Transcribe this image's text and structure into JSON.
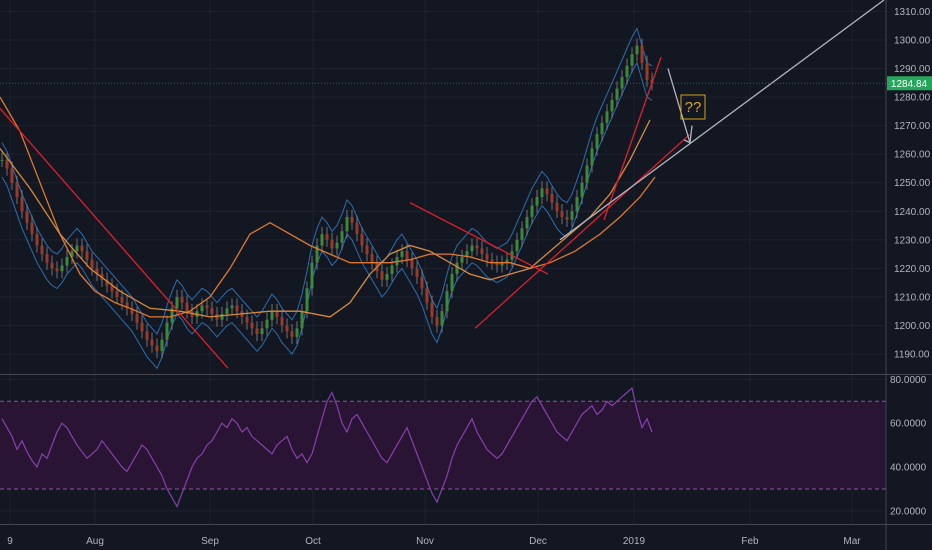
{
  "chart_data": [
    {
      "type": "candlestick",
      "price_axis": {
        "ticks": [
          "1310.00",
          "1300.00",
          "1290.00",
          "1280.00",
          "1270.00",
          "1260.00",
          "1250.00",
          "1240.00",
          "1230.00",
          "1220.00",
          "1210.00",
          "1200.00",
          "1190.00"
        ],
        "range": [
          1183,
          1314
        ]
      },
      "last_price": "1284.84",
      "time_axis": {
        "labels": [
          "9",
          "Aug",
          "Sep",
          "Oct",
          "Nov",
          "Dec",
          "2019",
          "Feb",
          "Mar"
        ]
      },
      "price_series": {
        "start_date": "2018-07-09",
        "closes": [
          1258,
          1255,
          1250,
          1245,
          1240,
          1236,
          1232,
          1228,
          1225,
          1222,
          1220,
          1219,
          1221,
          1224,
          1226,
          1228,
          1226,
          1223,
          1220,
          1218,
          1216,
          1214,
          1212,
          1210,
          1208,
          1206,
          1204,
          1201,
          1198,
          1195,
          1193,
          1191,
          1195,
          1201,
          1206,
          1210,
          1208,
          1205,
          1203,
          1205,
          1207,
          1206,
          1204,
          1202,
          1204,
          1206,
          1207,
          1205,
          1203,
          1201,
          1199,
          1197,
          1199,
          1202,
          1205,
          1203,
          1200,
          1198,
          1196,
          1199,
          1205,
          1213,
          1222,
          1228,
          1232,
          1230,
          1227,
          1229,
          1233,
          1238,
          1236,
          1232,
          1228,
          1225,
          1222,
          1219,
          1216,
          1218,
          1221,
          1224,
          1226,
          1223,
          1220,
          1217,
          1213,
          1208,
          1203,
          1200,
          1205,
          1212,
          1218,
          1222,
          1224,
          1226,
          1228,
          1227,
          1225,
          1223,
          1222,
          1221,
          1222,
          1223,
          1226,
          1230,
          1234,
          1238,
          1242,
          1245,
          1248,
          1246,
          1243,
          1240,
          1238,
          1237,
          1240,
          1245,
          1250,
          1256,
          1262,
          1267,
          1271,
          1275,
          1279,
          1283,
          1287,
          1291,
          1295,
          1298,
          1292,
          1286,
          1284.84
        ],
        "high_envelope_offset": 6,
        "low_envelope_offset": 6
      },
      "moving_averages": [
        {
          "color": "#e07a2a",
          "points": [
            [
              0,
              1280
            ],
            [
              20,
              1268
            ],
            [
              40,
              1250
            ],
            [
              60,
              1232
            ],
            [
              80,
              1218
            ],
            [
              95,
              1212
            ],
            [
              115,
              1208
            ],
            [
              130,
              1206
            ],
            [
              150,
              1203
            ],
            [
              170,
              1203
            ],
            [
              190,
              1205
            ],
            [
              210,
              1210
            ],
            [
              230,
              1220
            ],
            [
              250,
              1232
            ],
            [
              270,
              1236
            ],
            [
              290,
              1232
            ],
            [
              310,
              1228
            ],
            [
              330,
              1225
            ],
            [
              350,
              1222
            ],
            [
              370,
              1222
            ],
            [
              390,
              1222
            ],
            [
              410,
              1223
            ],
            [
              430,
              1225
            ],
            [
              450,
              1225
            ],
            [
              470,
              1224
            ],
            [
              490,
              1222
            ],
            [
              510,
              1222
            ],
            [
              530,
              1220
            ],
            [
              550,
              1222
            ],
            [
              575,
              1226
            ],
            [
              600,
              1232
            ],
            [
              620,
              1238
            ],
            [
              640,
              1245
            ],
            [
              655,
              1252
            ]
          ]
        },
        {
          "color": "#d88a3a",
          "points": [
            [
              0,
              1262
            ],
            [
              30,
              1248
            ],
            [
              60,
              1232
            ],
            [
              90,
              1220
            ],
            [
              120,
              1212
            ],
            [
              150,
              1206
            ],
            [
              180,
              1205
            ],
            [
              210,
              1203
            ],
            [
              240,
              1204
            ],
            [
              270,
              1205
            ],
            [
              300,
              1205
            ],
            [
              330,
              1203
            ],
            [
              350,
              1208
            ],
            [
              370,
              1218
            ],
            [
              390,
              1225
            ],
            [
              410,
              1228
            ],
            [
              430,
              1226
            ],
            [
              450,
              1222
            ],
            [
              470,
              1218
            ],
            [
              490,
              1216
            ],
            [
              510,
              1218
            ],
            [
              530,
              1220
            ],
            [
              550,
              1226
            ],
            [
              570,
              1232
            ],
            [
              590,
              1238
            ],
            [
              610,
              1246
            ],
            [
              630,
              1258
            ],
            [
              650,
              1272
            ]
          ]
        }
      ],
      "trendlines": [
        {
          "color": "#e0202a",
          "from": [
            0,
            1276
          ],
          "to": [
            228,
            1185
          ]
        },
        {
          "color": "#e0202a",
          "from": [
            410,
            1243
          ],
          "to": [
            548,
            1218
          ]
        },
        {
          "color": "#e0202a",
          "from": [
            475,
            1199
          ],
          "to": [
            690,
            1267
          ]
        },
        {
          "color": "#e0202a",
          "from": [
            604,
            1237
          ],
          "to": [
            661,
            1294
          ]
        },
        {
          "color": "#b2b5be",
          "from": [
            560,
            1230
          ],
          "to": [
            884,
            1314
          ]
        }
      ],
      "annotation": {
        "text": "??"
      }
    },
    {
      "type": "line",
      "panel": "RSI",
      "value_axis": {
        "ticks": [
          "80.0000",
          "60.0000",
          "40.0000",
          "20.0000"
        ],
        "range": [
          14,
          82
        ]
      },
      "band": {
        "upper": 70,
        "lower": 30,
        "fill": "#2a1433",
        "line_color": "#8a5aa0"
      },
      "line_color": "#8a3fb0",
      "start_x_label": "9",
      "values": [
        62,
        58,
        54,
        48,
        52,
        47,
        43,
        40,
        46,
        44,
        50,
        56,
        60,
        58,
        54,
        50,
        47,
        44,
        46,
        48,
        52,
        49,
        46,
        43,
        40,
        38,
        42,
        46,
        50,
        48,
        44,
        40,
        36,
        30,
        26,
        22,
        28,
        34,
        40,
        44,
        46,
        50,
        52,
        56,
        60,
        58,
        62,
        60,
        56,
        58,
        54,
        52,
        50,
        48,
        46,
        50,
        52,
        54,
        48,
        44,
        46,
        42,
        46,
        54,
        62,
        70,
        74,
        68,
        60,
        56,
        62,
        64,
        60,
        56,
        52,
        48,
        44,
        42,
        46,
        50,
        54,
        58,
        52,
        46,
        40,
        34,
        28,
        24,
        30,
        36,
        44,
        50,
        54,
        58,
        62,
        56,
        52,
        48,
        46,
        44,
        46,
        50,
        54,
        58,
        62,
        66,
        70,
        72,
        68,
        64,
        60,
        56,
        54,
        52,
        56,
        60,
        64,
        66,
        68,
        64,
        66,
        70,
        68,
        70,
        72,
        74,
        76,
        66,
        58,
        62,
        56
      ]
    }
  ]
}
